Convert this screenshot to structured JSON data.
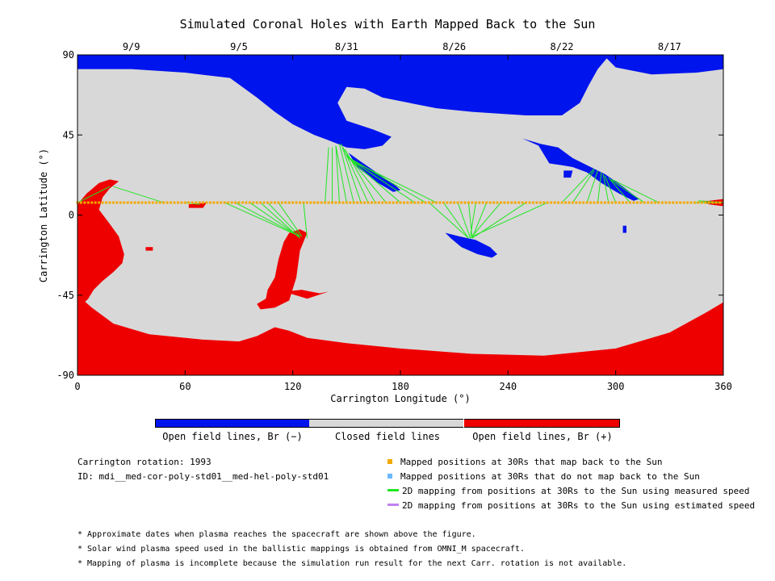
{
  "title": "Simulated Coronal Holes with Earth Mapped Back to the Sun",
  "colors": {
    "neg": "#0014ee",
    "pos": "#ee0000",
    "closed": "#d8d8d8",
    "mapped": "#f2a900",
    "unmapped": "#6cb8ff",
    "measured": "#22e622",
    "estimated": "#c080f0"
  },
  "colorbar": {
    "neg_label": "Open field lines, Br (−)",
    "closed_label": "Closed field lines",
    "pos_label": "Open field lines, Br (+)"
  },
  "meta": {
    "rotation": "Carrington rotation: 1993",
    "id": "ID: mdi__med-cor-poly-std01__med-hel-poly-std01"
  },
  "legend": {
    "mapped": "Mapped positions at 30Rs that map back to the Sun",
    "unmapped": "Mapped positions at 30Rs that do not map back to the Sun",
    "measured": "2D mapping from positions at 30Rs to the Sun using measured speed",
    "estimated": "2D mapping from positions at 30Rs to the Sun using estimated speed"
  },
  "notes": [
    "* Approximate dates when plasma reaches the spacecraft are shown above the figure.",
    "* Solar wind plasma speed used in the ballistic mappings is obtained from OMNI_M spacecraft.",
    "* Mapping of plasma is incomplete because the simulation run result for the next Carr. rotation is not available."
  ],
  "chart_data": {
    "type": "map",
    "xlabel": "Carrington Longitude (°)",
    "ylabel": "Carrington Latitude (°)",
    "xlim": [
      0,
      360
    ],
    "ylim": [
      -90,
      90
    ],
    "xticks": [
      0,
      60,
      120,
      180,
      240,
      300,
      360
    ],
    "yticks": [
      90,
      45,
      0,
      -45,
      -90
    ],
    "date_ticks": [
      {
        "label": "9/9",
        "lon": 30
      },
      {
        "label": "9/5",
        "lon": 90
      },
      {
        "label": "8/31",
        "lon": 150
      },
      {
        "label": "8/26",
        "lon": 210
      },
      {
        "label": "8/22",
        "lon": 270
      },
      {
        "label": "8/17",
        "lon": 330
      }
    ],
    "coronal_holes_neg": [
      [
        [
          0,
          90
        ],
        [
          360,
          90
        ],
        [
          360,
          82
        ],
        [
          345,
          80
        ],
        [
          320,
          79
        ],
        [
          300,
          83
        ],
        [
          295,
          88
        ],
        [
          290,
          82
        ],
        [
          285,
          73
        ],
        [
          280,
          63
        ],
        [
          270,
          56
        ],
        [
          250,
          56
        ],
        [
          220,
          58
        ],
        [
          200,
          60
        ],
        [
          185,
          63
        ],
        [
          170,
          66
        ],
        [
          160,
          71
        ],
        [
          150,
          72
        ],
        [
          145,
          63
        ],
        [
          150,
          53
        ],
        [
          165,
          48
        ],
        [
          175,
          44
        ],
        [
          170,
          39
        ],
        [
          160,
          37
        ],
        [
          150,
          38
        ],
        [
          145,
          40
        ],
        [
          140,
          42
        ],
        [
          132,
          45
        ],
        [
          120,
          51
        ],
        [
          110,
          58
        ],
        [
          100,
          66
        ],
        [
          85,
          77
        ],
        [
          60,
          80
        ],
        [
          30,
          82
        ],
        [
          0,
          82
        ]
      ],
      [
        [
          248,
          43
        ],
        [
          258,
          40
        ],
        [
          268,
          38
        ],
        [
          276,
          32
        ],
        [
          284,
          28
        ],
        [
          294,
          23
        ],
        [
          304,
          16
        ],
        [
          313,
          9
        ],
        [
          310,
          8
        ],
        [
          302,
          12
        ],
        [
          292,
          18
        ],
        [
          284,
          24
        ],
        [
          276,
          27
        ],
        [
          270,
          28
        ],
        [
          263,
          29
        ],
        [
          260,
          34
        ],
        [
          257,
          39
        ]
      ],
      [
        [
          205,
          -10
        ],
        [
          213,
          -12
        ],
        [
          222,
          -14
        ],
        [
          230,
          -18
        ],
        [
          234,
          -22
        ],
        [
          231,
          -24
        ],
        [
          223,
          -22
        ],
        [
          214,
          -18
        ],
        [
          208,
          -13
        ]
      ],
      [
        [
          271,
          25
        ],
        [
          276,
          25
        ],
        [
          275,
          21
        ],
        [
          271,
          21
        ]
      ],
      [
        [
          151,
          35
        ],
        [
          158,
          30
        ],
        [
          168,
          23
        ],
        [
          178,
          16
        ],
        [
          180,
          14
        ],
        [
          176,
          13
        ],
        [
          166,
          19
        ],
        [
          156,
          27
        ]
      ],
      [
        [
          304,
          -6
        ],
        [
          306,
          -6
        ],
        [
          306,
          -10
        ],
        [
          304,
          -10
        ]
      ]
    ],
    "coronal_holes_pos": [
      [
        [
          0,
          -45
        ],
        [
          8,
          -52
        ],
        [
          20,
          -61
        ],
        [
          40,
          -67
        ],
        [
          70,
          -70
        ],
        [
          90,
          -71
        ],
        [
          100,
          -68
        ],
        [
          110,
          -63
        ],
        [
          118,
          -65
        ],
        [
          128,
          -69
        ],
        [
          150,
          -72
        ],
        [
          180,
          -75
        ],
        [
          220,
          -78
        ],
        [
          260,
          -79
        ],
        [
          300,
          -75
        ],
        [
          330,
          -66
        ],
        [
          350,
          -55
        ],
        [
          360,
          -49
        ],
        [
          360,
          -90
        ],
        [
          0,
          -90
        ]
      ],
      [
        [
          0,
          6
        ],
        [
          5,
          12
        ],
        [
          12,
          18
        ],
        [
          18,
          20
        ],
        [
          23,
          19
        ],
        [
          18,
          15
        ],
        [
          14,
          10
        ],
        [
          12,
          3
        ],
        [
          18,
          -5
        ],
        [
          23,
          -12
        ],
        [
          26,
          -22
        ],
        [
          25,
          -27
        ],
        [
          20,
          -32
        ],
        [
          14,
          -37
        ],
        [
          9,
          -42
        ],
        [
          6,
          -47
        ],
        [
          3,
          -50
        ],
        [
          0,
          -45
        ]
      ],
      [
        [
          122,
          -35
        ],
        [
          118,
          -48
        ],
        [
          110,
          -52
        ],
        [
          102,
          -53
        ],
        [
          100,
          -50
        ],
        [
          105,
          -47
        ],
        [
          106,
          -42
        ],
        [
          110,
          -35
        ],
        [
          112,
          -25
        ],
        [
          115,
          -15
        ],
        [
          118,
          -10
        ],
        [
          124,
          -8
        ],
        [
          128,
          -10
        ],
        [
          124,
          -20
        ]
      ],
      [
        [
          115,
          -43
        ],
        [
          125,
          -42
        ],
        [
          135,
          -44
        ],
        [
          140,
          -43
        ],
        [
          128,
          -47
        ]
      ],
      [
        [
          348,
          8
        ],
        [
          352,
          8
        ],
        [
          360,
          9
        ],
        [
          360,
          5
        ],
        [
          352,
          6
        ]
      ],
      [
        [
          62,
          6
        ],
        [
          72,
          7
        ],
        [
          70,
          4
        ],
        [
          62,
          4
        ]
      ],
      [
        [
          38,
          -18
        ],
        [
          42,
          -18
        ],
        [
          42,
          -20
        ],
        [
          38,
          -20
        ]
      ]
    ],
    "mapped_longitudes": [
      0,
      2,
      4,
      6,
      8,
      10,
      12,
      14,
      16,
      18,
      20,
      22,
      24,
      26,
      28,
      30,
      32,
      34,
      36,
      38,
      40,
      42,
      44,
      46,
      48,
      50,
      52,
      54,
      56,
      58,
      60,
      62,
      64,
      66,
      68,
      70,
      72,
      74,
      76,
      78,
      80,
      82,
      84,
      86,
      88,
      90,
      92,
      94,
      96,
      98,
      100,
      102,
      104,
      106,
      108,
      110,
      112,
      114,
      116,
      118,
      120,
      122,
      124,
      126,
      128,
      130,
      132,
      134,
      136,
      138,
      140,
      142,
      144,
      146,
      148,
      150,
      152,
      154,
      156,
      158,
      160,
      162,
      164,
      166,
      168,
      170,
      172,
      174,
      176,
      178,
      180,
      182,
      184,
      186,
      188,
      190,
      192,
      194,
      196,
      198,
      200,
      202,
      204,
      206,
      208,
      210,
      212,
      214,
      216,
      218,
      220,
      222,
      224,
      226,
      228,
      230,
      232,
      234,
      236,
      238,
      240,
      242,
      244,
      246,
      248,
      250,
      252,
      254,
      256,
      258,
      260,
      262,
      264,
      266,
      268,
      270,
      272,
      274,
      276,
      278,
      280,
      282,
      284,
      286,
      288,
      290,
      292,
      294,
      296,
      298,
      300,
      302,
      304,
      306,
      308,
      310,
      312,
      314,
      316,
      318,
      320,
      322,
      324,
      326,
      328,
      330,
      332,
      334,
      336,
      338,
      340,
      342,
      344,
      346,
      348,
      350,
      352,
      354,
      356,
      358
    ],
    "mapped_latitude": 7,
    "mapping_lines": [
      {
        "from": [
          0,
          7
        ],
        "to": [
          18,
          16
        ]
      },
      {
        "from": [
          48,
          7
        ],
        "to": [
          20,
          16
        ]
      },
      {
        "from": [
          60,
          7
        ],
        "to": [
          68,
          6
        ]
      },
      {
        "from": [
          82,
          7
        ],
        "to": [
          124,
          -12
        ]
      },
      {
        "from": [
          88,
          7
        ],
        "to": [
          124,
          -12
        ]
      },
      {
        "from": [
          96,
          7
        ],
        "to": [
          122,
          -11
        ]
      },
      {
        "from": [
          102,
          7
        ],
        "to": [
          124,
          -13
        ]
      },
      {
        "from": [
          106,
          7
        ],
        "to": [
          124,
          -12
        ]
      },
      {
        "from": [
          112,
          7
        ],
        "to": [
          125,
          -12
        ]
      },
      {
        "from": [
          126,
          7
        ],
        "to": [
          128,
          -13
        ]
      },
      {
        "from": [
          138,
          7
        ],
        "to": [
          140,
          38
        ]
      },
      {
        "from": [
          142,
          7
        ],
        "to": [
          142,
          38
        ]
      },
      {
        "from": [
          146,
          7
        ],
        "to": [
          144,
          39
        ]
      },
      {
        "from": [
          150,
          7
        ],
        "to": [
          144,
          39
        ]
      },
      {
        "from": [
          154,
          7
        ],
        "to": [
          146,
          40
        ]
      },
      {
        "from": [
          158,
          7
        ],
        "to": [
          147,
          40
        ]
      },
      {
        "from": [
          162,
          7
        ],
        "to": [
          148,
          38
        ]
      },
      {
        "from": [
          166,
          7
        ],
        "to": [
          149,
          37
        ]
      },
      {
        "from": [
          172,
          7
        ],
        "to": [
          150,
          34
        ]
      },
      {
        "from": [
          180,
          7
        ],
        "to": [
          151,
          32
        ]
      },
      {
        "from": [
          188,
          7
        ],
        "to": [
          151,
          32
        ]
      },
      {
        "from": [
          194,
          7
        ],
        "to": [
          150,
          33
        ]
      },
      {
        "from": [
          200,
          7
        ],
        "to": [
          152,
          31
        ]
      },
      {
        "from": [
          196,
          7
        ],
        "to": [
          218,
          -13
        ]
      },
      {
        "from": [
          204,
          7
        ],
        "to": [
          218,
          -13
        ]
      },
      {
        "from": [
          212,
          7
        ],
        "to": [
          219,
          -13
        ]
      },
      {
        "from": [
          218,
          7
        ],
        "to": [
          220,
          -13
        ]
      },
      {
        "from": [
          222,
          7
        ],
        "to": [
          219,
          -12
        ]
      },
      {
        "from": [
          228,
          7
        ],
        "to": [
          220,
          -13
        ]
      },
      {
        "from": [
          236,
          7
        ],
        "to": [
          219,
          -13
        ]
      },
      {
        "from": [
          250,
          7
        ],
        "to": [
          220,
          -13
        ]
      },
      {
        "from": [
          262,
          7
        ],
        "to": [
          220,
          -12
        ]
      },
      {
        "from": [
          270,
          7
        ],
        "to": [
          288,
          26
        ]
      },
      {
        "from": [
          276,
          7
        ],
        "to": [
          288,
          25
        ]
      },
      {
        "from": [
          284,
          7
        ],
        "to": [
          290,
          25
        ]
      },
      {
        "from": [
          290,
          7
        ],
        "to": [
          292,
          24
        ]
      },
      {
        "from": [
          296,
          7
        ],
        "to": [
          293,
          23
        ]
      },
      {
        "from": [
          300,
          7
        ],
        "to": [
          294,
          22
        ]
      },
      {
        "from": [
          308,
          7
        ],
        "to": [
          296,
          21
        ]
      },
      {
        "from": [
          316,
          7
        ],
        "to": [
          297,
          20
        ]
      },
      {
        "from": [
          324,
          7
        ],
        "to": [
          298,
          20
        ]
      },
      {
        "from": [
          360,
          7
        ],
        "to": [
          346,
          8
        ]
      },
      {
        "from": [
          358,
          7
        ],
        "to": [
          344,
          7
        ]
      }
    ]
  }
}
